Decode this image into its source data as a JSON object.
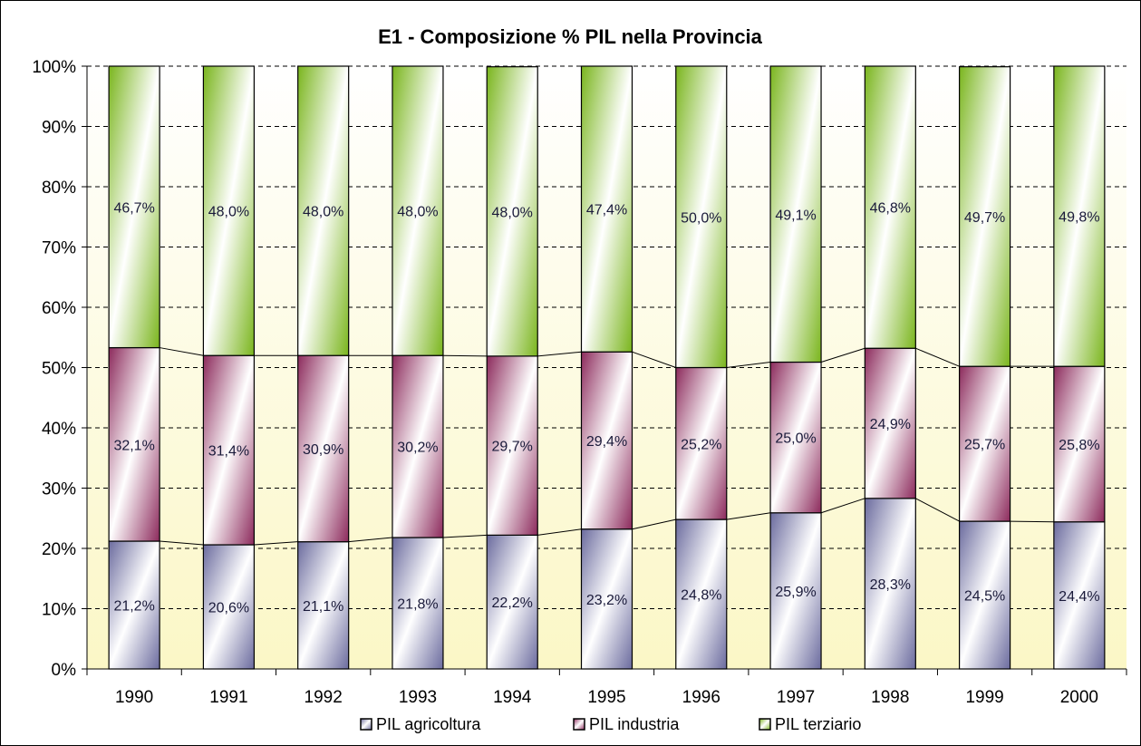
{
  "chart_data": {
    "type": "bar",
    "stacked": true,
    "percent": true,
    "title": "E1 - Composizione % PIL nella Provincia",
    "categories": [
      "1990",
      "1991",
      "1992",
      "1993",
      "1994",
      "1995",
      "1996",
      "1997",
      "1998",
      "1999",
      "2000"
    ],
    "ylim": [
      0,
      100
    ],
    "y_ticks": [
      "0%",
      "10%",
      "20%",
      "30%",
      "40%",
      "50%",
      "60%",
      "70%",
      "80%",
      "90%",
      "100%"
    ],
    "grid": true,
    "series_lines": true,
    "legend_position": "bottom",
    "series": [
      {
        "name": "PIL agricoltura",
        "color": "#6b6b9e",
        "values": [
          21.2,
          20.6,
          21.1,
          21.8,
          22.2,
          23.2,
          24.8,
          25.9,
          28.3,
          24.5,
          24.4
        ],
        "labels": [
          "21,2%",
          "20,6%",
          "21,1%",
          "21,8%",
          "22,2%",
          "23,2%",
          "24,8%",
          "25,9%",
          "28,3%",
          "24,5%",
          "24,4%"
        ]
      },
      {
        "name": "PIL industria",
        "color": "#8c2a5c",
        "values": [
          32.1,
          31.4,
          30.9,
          30.2,
          29.7,
          29.4,
          25.2,
          25.0,
          24.9,
          25.7,
          25.8
        ],
        "labels": [
          "32,1%",
          "31,4%",
          "30,9%",
          "30,2%",
          "29,7%",
          "29,4%",
          "25,2%",
          "25,0%",
          "24,9%",
          "25,7%",
          "25,8%"
        ]
      },
      {
        "name": "PIL terziario",
        "color": "#7ab51d",
        "values": [
          46.7,
          48.0,
          48.0,
          48.0,
          48.0,
          47.4,
          50.0,
          49.1,
          46.8,
          49.7,
          49.8
        ],
        "labels": [
          "46,7%",
          "48,0%",
          "48,0%",
          "48,0%",
          "48,0%",
          "47,4%",
          "50,0%",
          "49,1%",
          "46,8%",
          "49,7%",
          "49,8%"
        ]
      }
    ]
  }
}
